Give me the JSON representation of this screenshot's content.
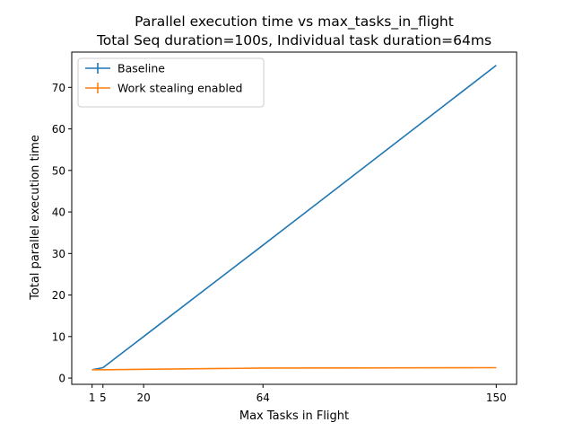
{
  "chart_data": {
    "type": "line",
    "title": "Parallel execution time vs max_tasks_in_flight",
    "subtitle": "Total Seq duration=100s, Individual task duration=64ms",
    "xlabel": "Max Tasks in Flight",
    "ylabel": "Total parallel execution time",
    "x_ticks": [
      1,
      5,
      20,
      64,
      150
    ],
    "y_ticks": [
      0,
      10,
      20,
      30,
      40,
      50,
      60,
      70
    ],
    "xlim": [
      -6.5,
      157.5
    ],
    "ylim": [
      -1.5,
      78.5
    ],
    "grid": false,
    "legend_position": "top-left",
    "series": [
      {
        "name": "Baseline",
        "color": "#1f77b4",
        "x": [
          1,
          5,
          20,
          64,
          150
        ],
        "y": [
          2.0,
          2.5,
          10.0,
          32.0,
          75.3
        ]
      },
      {
        "name": "Work stealing enabled",
        "color": "#ff7f0e",
        "x": [
          1,
          5,
          20,
          64,
          150
        ],
        "y": [
          2.0,
          2.0,
          2.1,
          2.4,
          2.5
        ]
      }
    ]
  }
}
